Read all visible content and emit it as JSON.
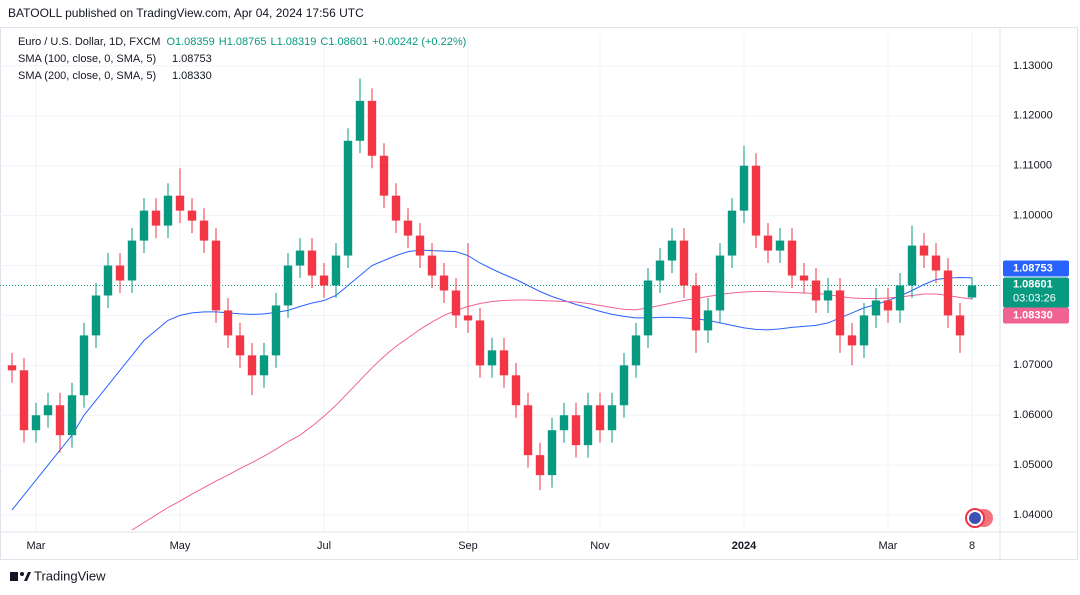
{
  "header": "BATOOLL published on TradingView.com, Apr 04, 2024 17:56 UTC",
  "footer": "TradingView",
  "chart_data": {
    "type": "candlestick",
    "title": "Euro / U.S. Dollar, 1D, FXCM",
    "ohlc_legend": [
      {
        "value": 1.08359,
        "label": "O1.08359"
      },
      {
        "value": 1.08765,
        "label": "H1.08765"
      },
      {
        "value": 1.08319,
        "label": "L1.08319"
      },
      {
        "value": 1.08601,
        "label": "C1.08601"
      }
    ],
    "change_label": "+0.00242 (+0.22%)",
    "categories": [
      null,
      null,
      "Mar",
      null,
      null,
      null,
      null,
      null,
      null,
      null,
      null,
      null,
      null,
      null,
      "May",
      null,
      null,
      null,
      null,
      null,
      null,
      null,
      null,
      null,
      null,
      null,
      "Jul",
      null,
      null,
      null,
      null,
      null,
      null,
      null,
      null,
      null,
      null,
      null,
      "Sep",
      null,
      null,
      null,
      null,
      null,
      null,
      null,
      null,
      null,
      null,
      "Nov",
      null,
      null,
      null,
      null,
      null,
      null,
      null,
      null,
      null,
      null,
      null,
      "2024",
      null,
      null,
      null,
      null,
      null,
      null,
      null,
      null,
      null,
      null,
      null,
      "Mar",
      null,
      null,
      null,
      null,
      null,
      null,
      "8"
    ],
    "ohlc": {
      "up_color": "#089981",
      "down_color": "#f23645",
      "open": [
        1.07,
        1.069,
        1.057,
        1.06,
        1.062,
        1.056,
        1.064,
        1.076,
        1.084,
        1.09,
        1.087,
        1.095,
        1.101,
        1.098,
        1.104,
        1.101,
        1.099,
        1.095,
        1.081,
        1.076,
        1.072,
        1.068,
        1.072,
        1.082,
        1.09,
        1.093,
        1.088,
        1.086,
        1.092,
        1.115,
        1.123,
        1.112,
        1.104,
        1.099,
        1.096,
        1.092,
        1.088,
        1.085,
        1.08,
        1.079,
        1.07,
        1.073,
        1.068,
        1.062,
        1.052,
        1.048,
        1.057,
        1.06,
        1.054,
        1.062,
        1.057,
        1.062,
        1.07,
        1.076,
        1.087,
        1.091,
        1.095,
        1.086,
        1.077,
        1.081,
        1.092,
        1.101,
        1.11,
        1.096,
        1.093,
        1.095,
        1.088,
        1.087,
        1.083,
        1.085,
        1.076,
        1.074,
        1.08,
        1.083,
        1.081,
        1.086,
        1.094,
        1.092,
        1.089,
        1.08,
        1.08359
      ],
      "high": [
        1.0725,
        1.0715,
        1.0625,
        1.0645,
        1.0645,
        1.0665,
        1.0785,
        1.0865,
        1.0925,
        1.0925,
        1.0975,
        1.1035,
        1.1035,
        1.1065,
        1.1095,
        1.1035,
        1.1015,
        1.0975,
        1.0835,
        1.0785,
        1.0745,
        1.0745,
        1.0845,
        1.0925,
        1.0955,
        1.0955,
        1.0905,
        1.0945,
        1.1175,
        1.1275,
        1.1255,
        1.1145,
        1.1065,
        1.1015,
        1.0985,
        1.0945,
        1.0905,
        1.0875,
        1.0945,
        1.0815,
        1.0755,
        1.0755,
        1.0705,
        1.0645,
        1.0545,
        1.0595,
        1.0625,
        1.0625,
        1.0645,
        1.0645,
        1.0645,
        1.0725,
        1.0785,
        1.0895,
        1.0935,
        1.0975,
        1.0975,
        1.0885,
        1.0835,
        1.0945,
        1.1035,
        1.114,
        1.1125,
        1.0985,
        1.0975,
        1.0975,
        1.0905,
        1.0895,
        1.0875,
        1.0875,
        1.0785,
        1.0825,
        1.0855,
        1.0855,
        1.0885,
        1.098,
        1.0965,
        1.0945,
        1.0915,
        1.0825,
        1.08765
      ],
      "low": [
        1.0665,
        1.0545,
        1.0545,
        1.0575,
        1.0525,
        1.0535,
        1.0615,
        1.0735,
        1.0815,
        1.0845,
        1.0845,
        1.0925,
        1.0955,
        1.0955,
        1.0985,
        1.0965,
        1.0925,
        1.0785,
        1.0735,
        1.0695,
        1.064,
        1.0655,
        1.0695,
        1.0795,
        1.0875,
        1.0855,
        1.0835,
        1.0835,
        1.0895,
        1.1125,
        1.1095,
        1.1015,
        1.0965,
        1.0935,
        1.0895,
        1.0855,
        1.0825,
        1.0775,
        1.0765,
        1.0675,
        1.0675,
        1.0655,
        1.0595,
        1.0495,
        1.045,
        1.0455,
        1.0545,
        1.0515,
        1.0515,
        1.0545,
        1.0545,
        1.0595,
        1.0675,
        1.0735,
        1.0845,
        1.0885,
        1.0835,
        1.0725,
        1.0745,
        1.0785,
        1.0895,
        1.0985,
        1.0935,
        1.0905,
        1.0905,
        1.0855,
        1.0845,
        1.0805,
        1.0805,
        1.0725,
        1.07,
        1.0715,
        1.0775,
        1.0785,
        1.0785,
        1.0835,
        1.0895,
        1.0865,
        1.0775,
        1.0725,
        1.08319
      ],
      "close": [
        1.069,
        1.057,
        1.06,
        1.062,
        1.056,
        1.064,
        1.076,
        1.084,
        1.09,
        1.087,
        1.095,
        1.101,
        1.098,
        1.104,
        1.101,
        1.099,
        1.095,
        1.081,
        1.076,
        1.072,
        1.068,
        1.072,
        1.082,
        1.09,
        1.093,
        1.088,
        1.086,
        1.092,
        1.115,
        1.123,
        1.112,
        1.104,
        1.099,
        1.096,
        1.092,
        1.088,
        1.085,
        1.08,
        1.079,
        1.07,
        1.073,
        1.068,
        1.062,
        1.052,
        1.048,
        1.057,
        1.06,
        1.054,
        1.062,
        1.057,
        1.062,
        1.07,
        1.076,
        1.087,
        1.091,
        1.095,
        1.086,
        1.077,
        1.081,
        1.092,
        1.101,
        1.11,
        1.096,
        1.093,
        1.095,
        1.088,
        1.087,
        1.083,
        1.085,
        1.076,
        1.074,
        1.08,
        1.083,
        1.081,
        1.086,
        1.094,
        1.092,
        1.089,
        1.08,
        1.076,
        1.08601
      ]
    },
    "last_price": {
      "value": 1.08601,
      "label": "1.08601"
    },
    "countdown": "03:03:26",
    "series": [
      {
        "name": "SMA (100, close, 0, SMA, 5)",
        "color": "#2962ff",
        "last": {
          "value": 1.08753,
          "label": "1.08753"
        },
        "values": [
          1.041,
          1.044,
          1.047,
          1.05,
          1.053,
          1.056,
          1.06,
          1.063,
          1.066,
          1.069,
          1.072,
          1.075,
          1.077,
          1.079,
          1.08,
          1.0805,
          1.0807,
          1.0807,
          1.0805,
          1.0803,
          1.0802,
          1.0803,
          1.0806,
          1.081,
          1.0818,
          1.0825,
          1.083,
          1.084,
          1.086,
          1.088,
          1.09,
          1.091,
          1.092,
          1.0928,
          1.0931,
          1.093,
          1.0929,
          1.0928,
          1.092,
          1.0905,
          1.0893,
          1.0882,
          1.0872,
          1.086,
          1.0848,
          1.0838,
          1.083,
          1.0822,
          1.0815,
          1.0808,
          1.0802,
          1.0798,
          1.0795,
          1.0795,
          1.0796,
          1.0796,
          1.0795,
          1.0793,
          1.079,
          1.0785,
          1.078,
          1.0775,
          1.0772,
          1.0771,
          1.0773,
          1.0776,
          1.0778,
          1.078,
          1.0785,
          1.0795,
          1.0805,
          1.0815,
          1.0822,
          1.083,
          1.0839,
          1.085,
          1.0862,
          1.0872,
          1.0875,
          1.0876,
          1.08753
        ]
      },
      {
        "name": "SMA (200, close, 0, SMA, 5)",
        "color": "#f06292",
        "last": {
          "value": 1.0833,
          "label": "1.08330"
        },
        "values": [
          null,
          null,
          null,
          null,
          null,
          null,
          null,
          null,
          null,
          null,
          1.037,
          1.0385,
          1.04,
          1.0415,
          1.0428,
          1.0442,
          1.0455,
          1.0468,
          1.048,
          1.0493,
          1.0505,
          1.0518,
          1.0532,
          1.0547,
          1.056,
          1.0578,
          1.0598,
          1.062,
          1.0645,
          1.067,
          1.0695,
          1.0718,
          1.0738,
          1.0755,
          1.0772,
          1.0787,
          1.08,
          1.081,
          1.0818,
          1.0824,
          1.0828,
          1.083,
          1.0831,
          1.0831,
          1.083,
          1.0829,
          1.0828,
          1.0827,
          1.0824,
          1.082,
          1.0816,
          1.0812,
          1.0811,
          1.0815,
          1.082,
          1.0825,
          1.083,
          1.0834,
          1.0838,
          1.0842,
          1.0845,
          1.0847,
          1.0848,
          1.0848,
          1.0847,
          1.0846,
          1.0845,
          1.0844,
          1.0842,
          1.0838,
          1.0835,
          1.0834,
          1.0834,
          1.0835,
          1.0837,
          1.084,
          1.0843,
          1.0843,
          1.084,
          1.0836,
          1.0833
        ]
      }
    ],
    "ylim": [
      1.0366,
      1.1366
    ],
    "yticks": [
      {
        "value": 1.04,
        "label": "1.04000"
      },
      {
        "value": 1.05,
        "label": "1.05000"
      },
      {
        "value": 1.06,
        "label": "1.06000"
      },
      {
        "value": 1.07,
        "label": "1.07000"
      },
      {
        "value": 1.08,
        "label": "1.08000"
      },
      {
        "value": 1.09,
        "label": "1.09000"
      },
      {
        "value": 1.1,
        "label": "1.10000"
      },
      {
        "value": 1.11,
        "label": "1.11000"
      },
      {
        "value": 1.12,
        "label": "1.12000"
      },
      {
        "value": 1.13,
        "label": "1.13000"
      }
    ],
    "grid": true
  }
}
